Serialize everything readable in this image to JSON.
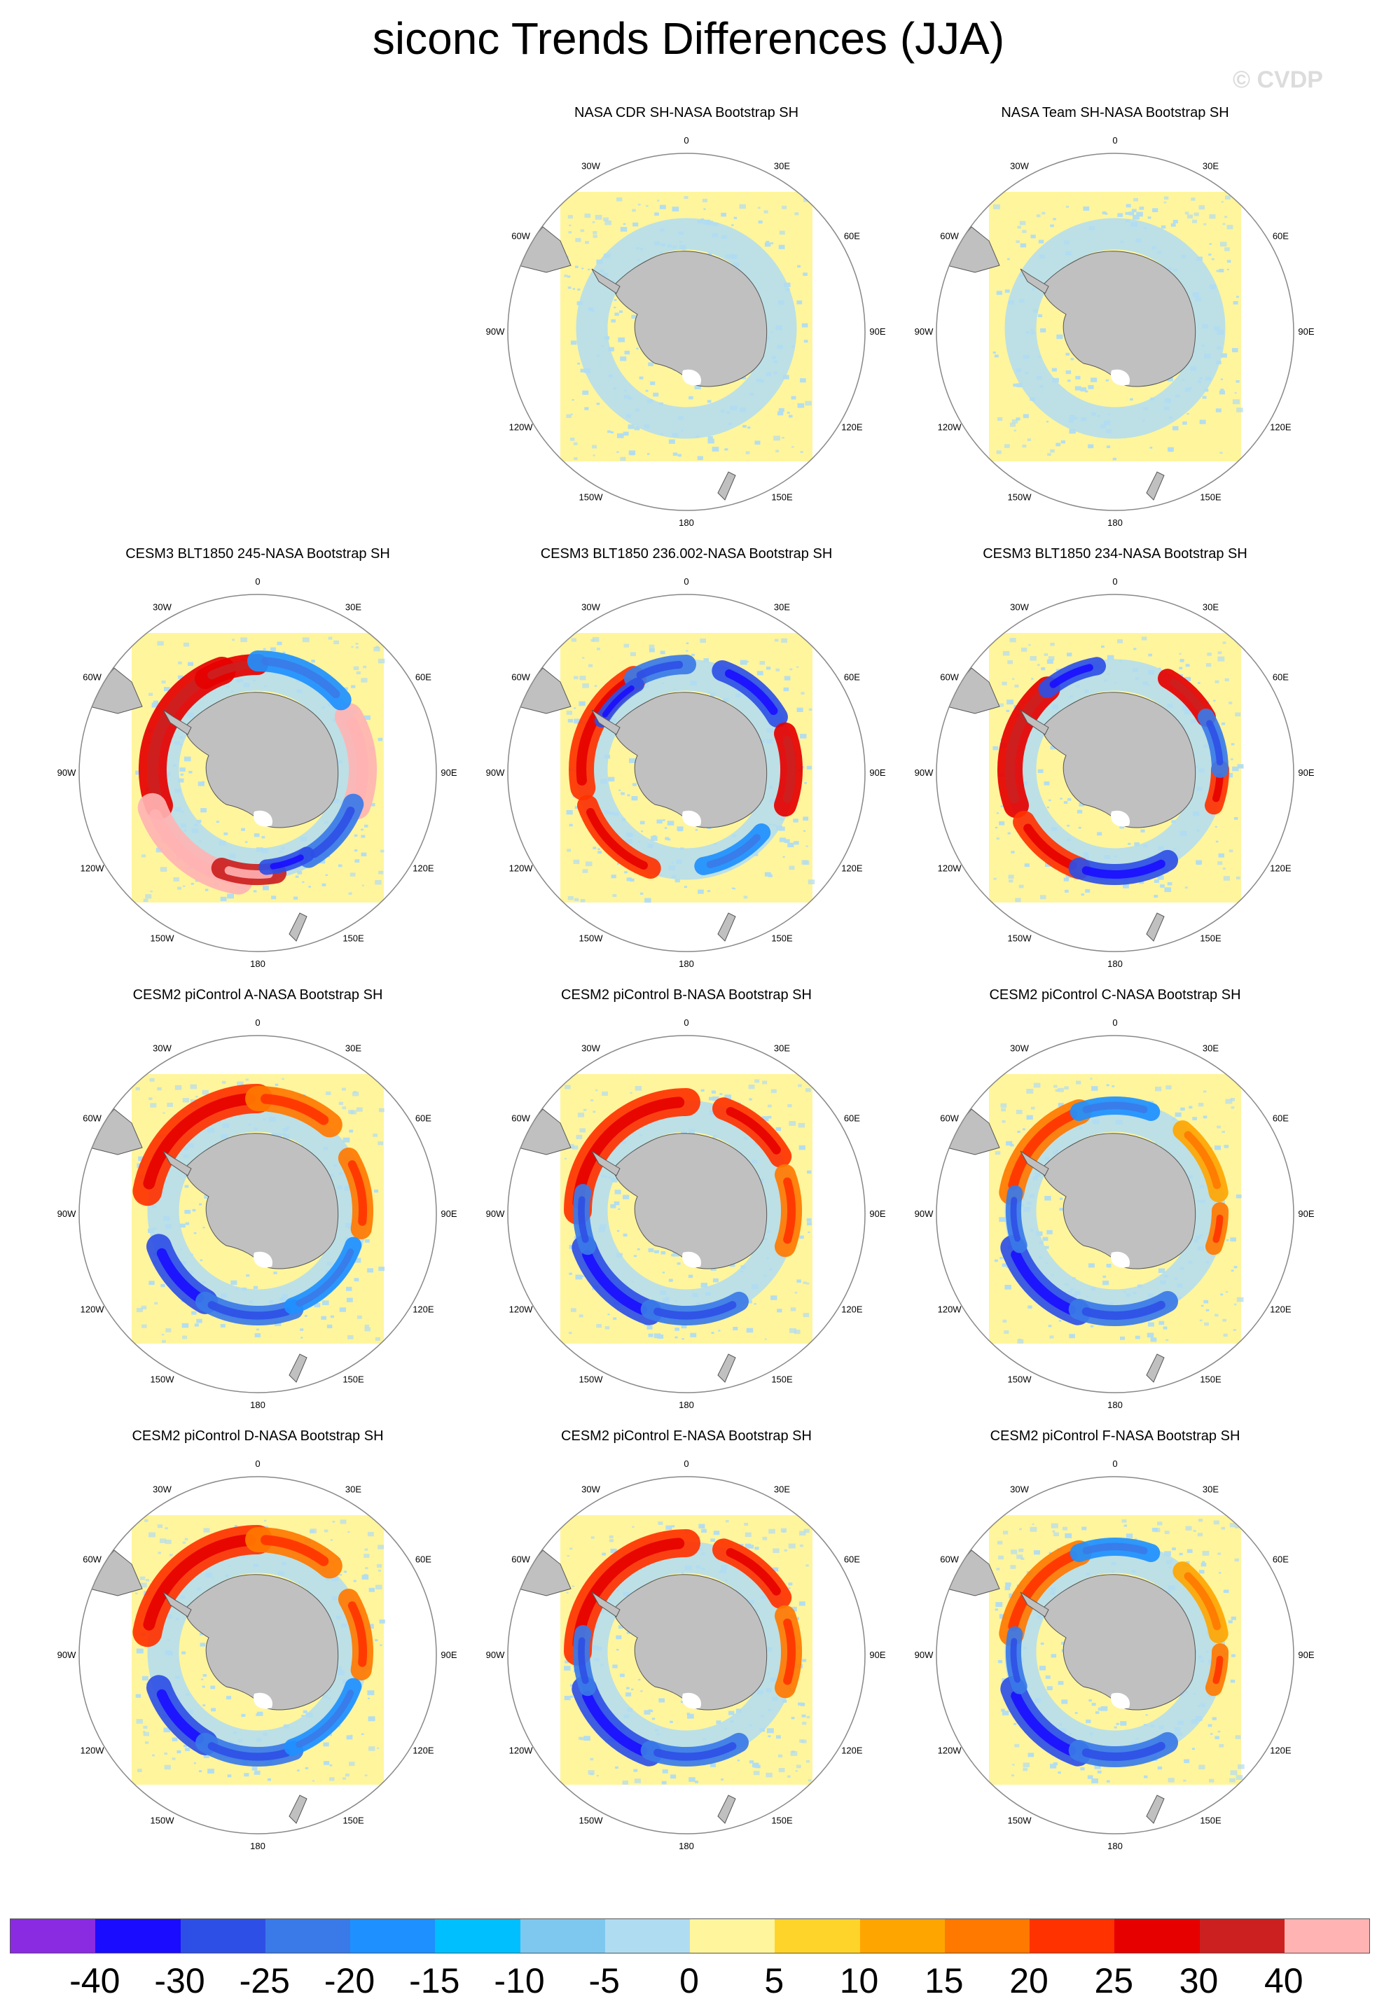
{
  "figure": {
    "title": "siconc Trends Differences (JJA)",
    "watermark": "© CVDP"
  },
  "longitude_labels": [
    "0",
    "30E",
    "60E",
    "90E",
    "120E",
    "150E",
    "180",
    "150W",
    "120W",
    "90W",
    "60W",
    "30W"
  ],
  "panels": [
    {
      "title": "NASA CDR SH-NASA Bootstrap SH",
      "pattern": "none"
    },
    {
      "title": "NASA Team SH-NASA Bootstrap SH",
      "pattern": "none"
    },
    {
      "title": "CESM3 BLT1850 245-NASA Bootstrap SH",
      "pattern": "strong-red"
    },
    {
      "title": "CESM3 BLT1850 236.002-NASA Bootstrap SH",
      "pattern": "mixed-a"
    },
    {
      "title": "CESM3 BLT1850 234-NASA Bootstrap SH",
      "pattern": "mixed-b"
    },
    {
      "title": "CESM2 piControl A-NASA Bootstrap SH",
      "pattern": "pi-a"
    },
    {
      "title": "CESM2 piControl B-NASA Bootstrap SH",
      "pattern": "pi-b"
    },
    {
      "title": "CESM2 piControl C-NASA Bootstrap SH",
      "pattern": "pi-c"
    },
    {
      "title": "CESM2 piControl D-NASA Bootstrap SH",
      "pattern": "pi-a"
    },
    {
      "title": "CESM2 piControl E-NASA Bootstrap SH",
      "pattern": "pi-b"
    },
    {
      "title": "CESM2 piControl F-NASA Bootstrap SH",
      "pattern": "pi-c"
    }
  ],
  "colorbar": {
    "colors": [
      "#8a2be2",
      "#1a0dff",
      "#2e4fe6",
      "#3a7ae8",
      "#1e90ff",
      "#00bfff",
      "#7ec8f0",
      "#b0dcf2",
      "#fff59d",
      "#ffd42a",
      "#ffa500",
      "#ff7800",
      "#ff3200",
      "#e60000",
      "#cc2020",
      "#ffb3b3"
    ],
    "labels": [
      "-40",
      "-30",
      "-25",
      "-20",
      "-15",
      "-10",
      "-5",
      "0",
      "5",
      "10",
      "15",
      "20",
      "25",
      "30",
      "40"
    ]
  },
  "map_colors": {
    "land": "#c0c0c0",
    "background": "#fff59d",
    "small_positive": "#fff59d",
    "small_negative": "#b0dcf2"
  }
}
